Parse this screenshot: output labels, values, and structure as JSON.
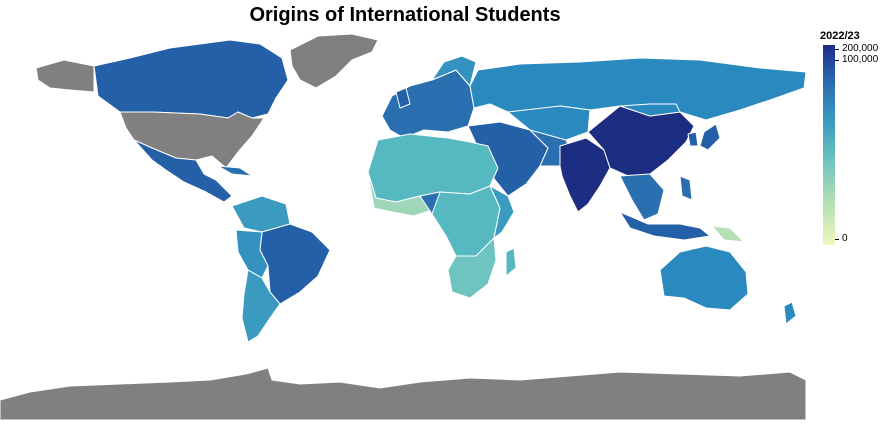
{
  "title": "Origins of International Students",
  "legend": {
    "title": "2022/23",
    "ticks": [
      "200,000",
      "100,000",
      "0"
    ],
    "colors": [
      "#1c2d82",
      "#2a6fb0",
      "#3a9ac0",
      "#6ec4bf",
      "#eef7bc"
    ],
    "no_data_color": "#808080"
  },
  "map": {
    "land_regions": [
      {
        "name": "Greenland",
        "status": "no-data"
      },
      {
        "name": "Canada",
        "level": "high"
      },
      {
        "name": "United States",
        "status": "no-data"
      },
      {
        "name": "Mexico",
        "level": "high"
      },
      {
        "name": "Brazil",
        "level": "high"
      },
      {
        "name": "South America (rest)",
        "level": "medium"
      },
      {
        "name": "Russia",
        "level": "medium"
      },
      {
        "name": "Europe",
        "level": "medium-high"
      },
      {
        "name": "North Africa",
        "level": "medium-low"
      },
      {
        "name": "Sub-Saharan Africa",
        "level": "medium-low"
      },
      {
        "name": "Middle East",
        "level": "medium-high"
      },
      {
        "name": "India",
        "level": "very-high"
      },
      {
        "name": "China",
        "level": "very-high"
      },
      {
        "name": "Southeast Asia",
        "level": "medium-high"
      },
      {
        "name": "Australia",
        "level": "medium"
      },
      {
        "name": "Antarctica",
        "status": "no-data"
      }
    ]
  }
}
